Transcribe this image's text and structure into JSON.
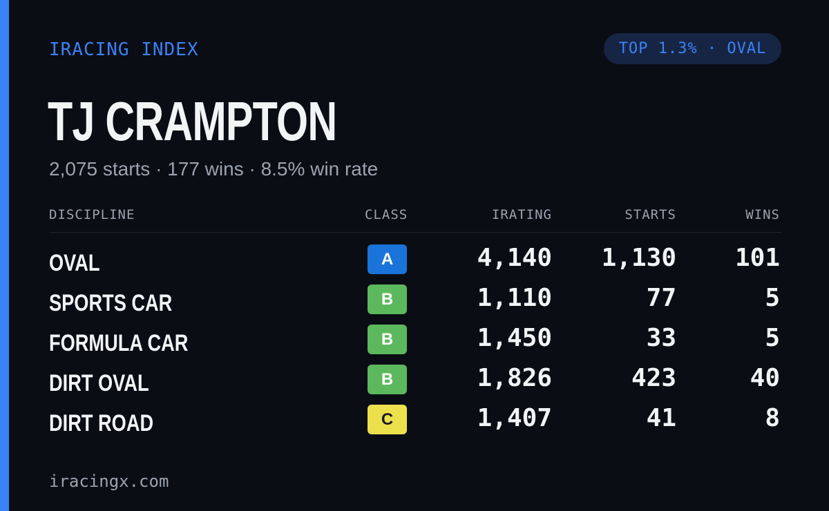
{
  "header": {
    "brand": "IRACING INDEX",
    "rank_pill": "TOP 1.3% · OVAL"
  },
  "driver": {
    "name": "TJ CRAMPTON",
    "summary": "2,075 starts · 177 wins · 8.5% win rate"
  },
  "table": {
    "columns": {
      "discipline": "DISCIPLINE",
      "class": "CLASS",
      "irating": "IRATING",
      "starts": "STARTS",
      "wins": "WINS"
    },
    "rows": [
      {
        "discipline": "OVAL",
        "class": "A",
        "class_color": "#1a73d9",
        "class_text_color": "#ffffff",
        "irating": "4,140",
        "starts": "1,130",
        "wins": "101"
      },
      {
        "discipline": "SPORTS CAR",
        "class": "B",
        "class_color": "#5cb85c",
        "class_text_color": "#ffffff",
        "irating": "1,110",
        "starts": "77",
        "wins": "5"
      },
      {
        "discipline": "FORMULA CAR",
        "class": "B",
        "class_color": "#5cb85c",
        "class_text_color": "#ffffff",
        "irating": "1,450",
        "starts": "33",
        "wins": "5"
      },
      {
        "discipline": "DIRT OVAL",
        "class": "B",
        "class_color": "#5cb85c",
        "class_text_color": "#ffffff",
        "irating": "1,826",
        "starts": "423",
        "wins": "40"
      },
      {
        "discipline": "DIRT ROAD",
        "class": "C",
        "class_color": "#ede04d",
        "class_text_color": "#1a1a1a",
        "irating": "1,407",
        "starts": "41",
        "wins": "8"
      }
    ]
  },
  "footer": {
    "site": "iracingx.com"
  },
  "colors": {
    "background": "#0a0d14",
    "accent": "#3b82f6",
    "pill_background": "#172544",
    "muted_text": "#9ca3af",
    "primary_text": "#f3f4f6"
  }
}
